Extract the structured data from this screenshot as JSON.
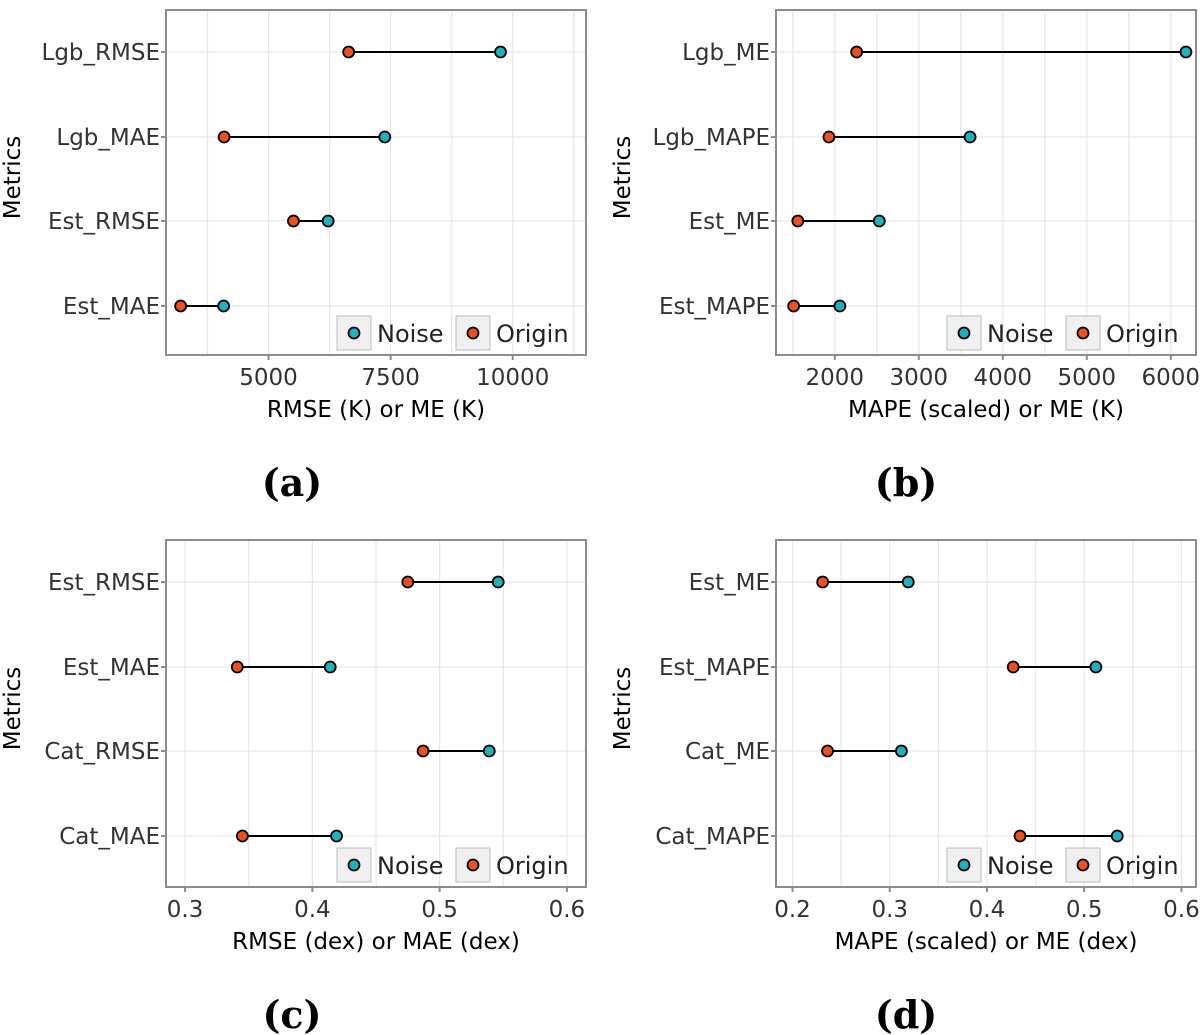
{
  "colors": {
    "noise": "#1bb3c0",
    "origin": "#f0501e",
    "grid": "#e6e6e6",
    "frame": "#8c8c8c",
    "segment": "#000000"
  },
  "chart_data": [
    {
      "type": "dumbbell",
      "panel_label": "(a)",
      "xlabel": "RMSE (K) or ME (K)",
      "ylabel": "Metrics",
      "xlim": [
        2900,
        11500
      ],
      "xticks": [
        5000,
        7500,
        10000
      ],
      "xtick_labels": [
        "5000",
        "7500",
        "10000"
      ],
      "categories": [
        "Lgb_RMSE",
        "Lgb_MAE",
        "Est_RMSE",
        "Est_MAE"
      ],
      "series": [
        {
          "name": "Noise",
          "values": [
            9750,
            7380,
            6220,
            4080
          ]
        },
        {
          "name": "Origin",
          "values": [
            6640,
            4090,
            5510,
            3200
          ]
        }
      ],
      "legend": [
        "Noise",
        "Origin"
      ],
      "legend_position": "bottom-right",
      "grid": true
    },
    {
      "type": "dumbbell",
      "panel_label": "(b)",
      "xlabel": "MAPE (scaled) or ME (K)",
      "ylabel": "Metrics",
      "xlim": [
        1300,
        6300
      ],
      "xticks": [
        2000,
        3000,
        4000,
        5000,
        6000
      ],
      "xtick_labels": [
        "2000",
        "3000",
        "4000",
        "5000",
        "6000"
      ],
      "categories": [
        "Lgb_ME",
        "Lgb_MAPE",
        "Est_ME",
        "Est_MAPE"
      ],
      "series": [
        {
          "name": "Noise",
          "values": [
            6180,
            3610,
            2530,
            2060
          ]
        },
        {
          "name": "Origin",
          "values": [
            2260,
            1930,
            1560,
            1510
          ]
        }
      ],
      "legend": [
        "Noise",
        "Origin"
      ],
      "legend_position": "bottom-right",
      "grid": true
    },
    {
      "type": "dumbbell",
      "panel_label": "(c)",
      "xlabel": "RMSE (dex) or MAE (dex)",
      "ylabel": "Metrics",
      "xlim": [
        0.285,
        0.615
      ],
      "xticks": [
        0.3,
        0.4,
        0.5,
        0.6
      ],
      "xtick_labels": [
        "0.3",
        "0.4",
        "0.5",
        "0.6"
      ],
      "categories": [
        "Est_RMSE",
        "Est_MAE",
        "Cat_RMSE",
        "Cat_MAE"
      ],
      "series": [
        {
          "name": "Noise",
          "values": [
            0.546,
            0.414,
            0.539,
            0.419
          ]
        },
        {
          "name": "Origin",
          "values": [
            0.475,
            0.341,
            0.487,
            0.345
          ]
        }
      ],
      "legend": [
        "Noise",
        "Origin"
      ],
      "legend_position": "bottom-right",
      "grid": true
    },
    {
      "type": "dumbbell",
      "panel_label": "(d)",
      "xlabel": "MAPE (scaled) or ME (dex)",
      "ylabel": "Metrics",
      "xlim": [
        0.183,
        0.615
      ],
      "xticks": [
        0.2,
        0.3,
        0.4,
        0.5,
        0.6
      ],
      "xtick_labels": [
        "0.2",
        "0.3",
        "0.4",
        "0.5",
        "0.6"
      ],
      "categories": [
        "Est_ME",
        "Est_MAPE",
        "Cat_ME",
        "Cat_MAPE"
      ],
      "series": [
        {
          "name": "Noise",
          "values": [
            0.319,
            0.512,
            0.312,
            0.534
          ]
        },
        {
          "name": "Origin",
          "values": [
            0.231,
            0.427,
            0.236,
            0.434
          ]
        }
      ],
      "legend": [
        "Noise",
        "Origin"
      ],
      "legend_position": "bottom-right",
      "grid": true
    }
  ]
}
